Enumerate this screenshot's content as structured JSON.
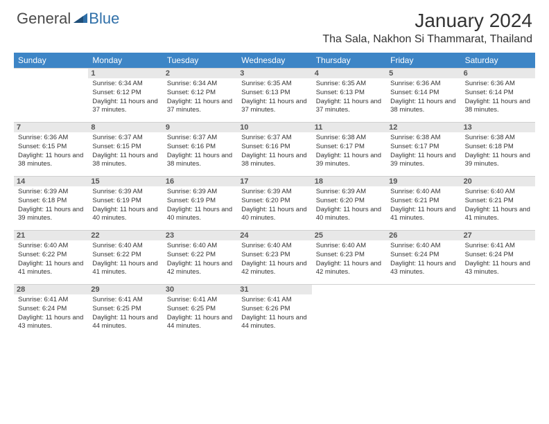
{
  "brand": {
    "first": "General",
    "second": "Blue"
  },
  "title": {
    "month": "January 2024",
    "location": "Tha Sala, Nakhon Si Thammarat, Thailand"
  },
  "dayNames": [
    "Sunday",
    "Monday",
    "Tuesday",
    "Wednesday",
    "Thursday",
    "Friday",
    "Saturday"
  ],
  "colors": {
    "header_bg": "#3d85c6",
    "header_text": "#ffffff",
    "daynum_bg": "#e8e8e8",
    "border": "#d0d0d0"
  },
  "weeks": [
    [
      {
        "n": "",
        "sr": "",
        "ss": "",
        "dl": ""
      },
      {
        "n": "1",
        "sr": "6:34 AM",
        "ss": "6:12 PM",
        "dl": "11 hours and 37 minutes."
      },
      {
        "n": "2",
        "sr": "6:34 AM",
        "ss": "6:12 PM",
        "dl": "11 hours and 37 minutes."
      },
      {
        "n": "3",
        "sr": "6:35 AM",
        "ss": "6:13 PM",
        "dl": "11 hours and 37 minutes."
      },
      {
        "n": "4",
        "sr": "6:35 AM",
        "ss": "6:13 PM",
        "dl": "11 hours and 37 minutes."
      },
      {
        "n": "5",
        "sr": "6:36 AM",
        "ss": "6:14 PM",
        "dl": "11 hours and 38 minutes."
      },
      {
        "n": "6",
        "sr": "6:36 AM",
        "ss": "6:14 PM",
        "dl": "11 hours and 38 minutes."
      }
    ],
    [
      {
        "n": "7",
        "sr": "6:36 AM",
        "ss": "6:15 PM",
        "dl": "11 hours and 38 minutes."
      },
      {
        "n": "8",
        "sr": "6:37 AM",
        "ss": "6:15 PM",
        "dl": "11 hours and 38 minutes."
      },
      {
        "n": "9",
        "sr": "6:37 AM",
        "ss": "6:16 PM",
        "dl": "11 hours and 38 minutes."
      },
      {
        "n": "10",
        "sr": "6:37 AM",
        "ss": "6:16 PM",
        "dl": "11 hours and 38 minutes."
      },
      {
        "n": "11",
        "sr": "6:38 AM",
        "ss": "6:17 PM",
        "dl": "11 hours and 39 minutes."
      },
      {
        "n": "12",
        "sr": "6:38 AM",
        "ss": "6:17 PM",
        "dl": "11 hours and 39 minutes."
      },
      {
        "n": "13",
        "sr": "6:38 AM",
        "ss": "6:18 PM",
        "dl": "11 hours and 39 minutes."
      }
    ],
    [
      {
        "n": "14",
        "sr": "6:39 AM",
        "ss": "6:18 PM",
        "dl": "11 hours and 39 minutes."
      },
      {
        "n": "15",
        "sr": "6:39 AM",
        "ss": "6:19 PM",
        "dl": "11 hours and 40 minutes."
      },
      {
        "n": "16",
        "sr": "6:39 AM",
        "ss": "6:19 PM",
        "dl": "11 hours and 40 minutes."
      },
      {
        "n": "17",
        "sr": "6:39 AM",
        "ss": "6:20 PM",
        "dl": "11 hours and 40 minutes."
      },
      {
        "n": "18",
        "sr": "6:39 AM",
        "ss": "6:20 PM",
        "dl": "11 hours and 40 minutes."
      },
      {
        "n": "19",
        "sr": "6:40 AM",
        "ss": "6:21 PM",
        "dl": "11 hours and 41 minutes."
      },
      {
        "n": "20",
        "sr": "6:40 AM",
        "ss": "6:21 PM",
        "dl": "11 hours and 41 minutes."
      }
    ],
    [
      {
        "n": "21",
        "sr": "6:40 AM",
        "ss": "6:22 PM",
        "dl": "11 hours and 41 minutes."
      },
      {
        "n": "22",
        "sr": "6:40 AM",
        "ss": "6:22 PM",
        "dl": "11 hours and 41 minutes."
      },
      {
        "n": "23",
        "sr": "6:40 AM",
        "ss": "6:22 PM",
        "dl": "11 hours and 42 minutes."
      },
      {
        "n": "24",
        "sr": "6:40 AM",
        "ss": "6:23 PM",
        "dl": "11 hours and 42 minutes."
      },
      {
        "n": "25",
        "sr": "6:40 AM",
        "ss": "6:23 PM",
        "dl": "11 hours and 42 minutes."
      },
      {
        "n": "26",
        "sr": "6:40 AM",
        "ss": "6:24 PM",
        "dl": "11 hours and 43 minutes."
      },
      {
        "n": "27",
        "sr": "6:41 AM",
        "ss": "6:24 PM",
        "dl": "11 hours and 43 minutes."
      }
    ],
    [
      {
        "n": "28",
        "sr": "6:41 AM",
        "ss": "6:24 PM",
        "dl": "11 hours and 43 minutes."
      },
      {
        "n": "29",
        "sr": "6:41 AM",
        "ss": "6:25 PM",
        "dl": "11 hours and 44 minutes."
      },
      {
        "n": "30",
        "sr": "6:41 AM",
        "ss": "6:25 PM",
        "dl": "11 hours and 44 minutes."
      },
      {
        "n": "31",
        "sr": "6:41 AM",
        "ss": "6:26 PM",
        "dl": "11 hours and 44 minutes."
      },
      {
        "n": "",
        "sr": "",
        "ss": "",
        "dl": ""
      },
      {
        "n": "",
        "sr": "",
        "ss": "",
        "dl": ""
      },
      {
        "n": "",
        "sr": "",
        "ss": "",
        "dl": ""
      }
    ]
  ],
  "labels": {
    "sunrise": "Sunrise:",
    "sunset": "Sunset:",
    "daylight": "Daylight:"
  }
}
